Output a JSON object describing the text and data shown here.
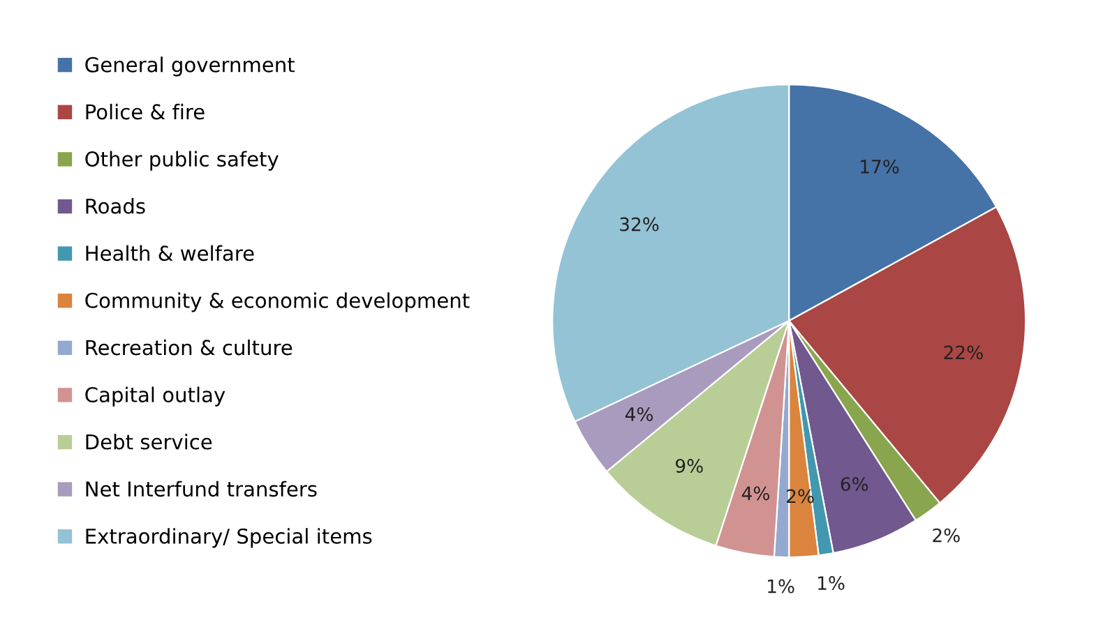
{
  "chart_data": {
    "type": "pie",
    "categories": [
      "General government",
      "Police & fire",
      "Other public safety",
      "Roads",
      "Health & welfare",
      "Community & economic development",
      "Recreation & culture",
      "Capital outlay",
      "Debt service",
      "Net Interfund transfers",
      "Extraordinary/ Special items"
    ],
    "values": [
      17,
      22,
      2,
      6,
      1,
      2,
      1,
      4,
      9,
      4,
      32
    ],
    "colors": [
      "#4572a7",
      "#aa4643",
      "#89a54e",
      "#71588f",
      "#4198af",
      "#db843d",
      "#93a9cf",
      "#d19392",
      "#b9cd96",
      "#a99bbd",
      "#93c3d5"
    ],
    "value_labels": [
      "17%",
      "22%",
      "2%",
      "6%",
      "1%",
      "2%",
      "1%",
      "4%",
      "9%",
      "4%",
      "32%"
    ],
    "legend": "left"
  }
}
